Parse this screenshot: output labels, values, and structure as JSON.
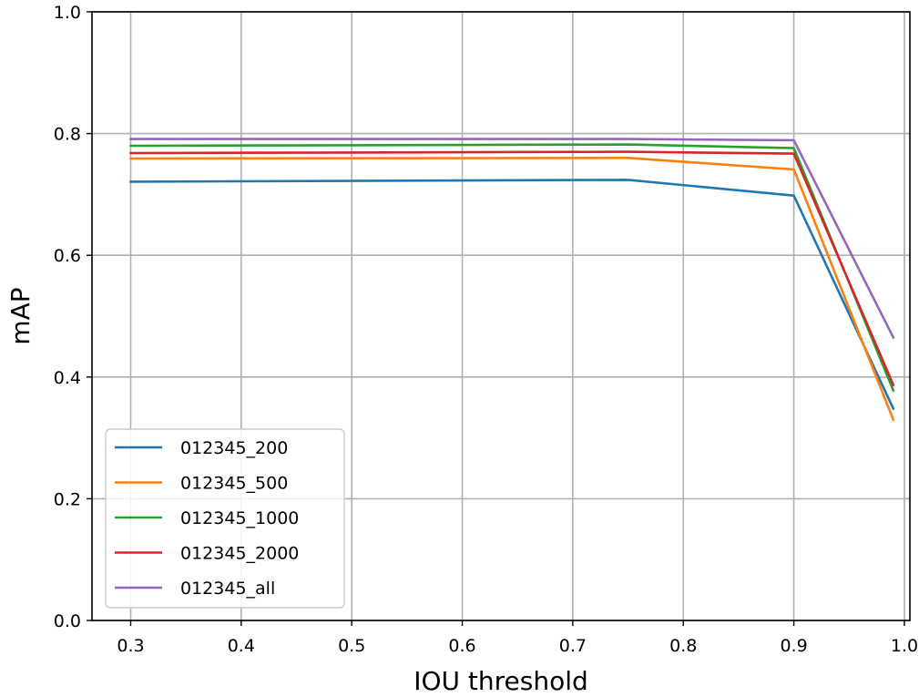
{
  "chart_data": {
    "type": "line",
    "xlabel": "IOU threshold",
    "ylabel": "mAP",
    "xlim": [
      0.265,
      1.005
    ],
    "ylim": [
      0.0,
      1.0
    ],
    "xticks": [
      "0.3",
      "0.4",
      "0.5",
      "0.6",
      "0.7",
      "0.8",
      "0.9",
      "1.0"
    ],
    "yticks": [
      "0.0",
      "0.2",
      "0.4",
      "0.6",
      "0.8",
      "1.0"
    ],
    "grid": true,
    "legend_position": "lower-left",
    "x": [
      0.3,
      0.75,
      0.9,
      0.99
    ],
    "series": [
      {
        "name": "012345_200",
        "color": "#1f77b4",
        "values": [
          0.721,
          0.724,
          0.698,
          0.348
        ]
      },
      {
        "name": "012345_500",
        "color": "#ff7f0e",
        "values": [
          0.759,
          0.76,
          0.741,
          0.33
        ]
      },
      {
        "name": "012345_1000",
        "color": "#2ca02c",
        "values": [
          0.78,
          0.782,
          0.776,
          0.378
        ]
      },
      {
        "name": "012345_2000",
        "color": "#d62728",
        "values": [
          0.768,
          0.77,
          0.767,
          0.387
        ]
      },
      {
        "name": "012345_all",
        "color": "#9467bd",
        "values": [
          0.791,
          0.791,
          0.789,
          0.465
        ]
      }
    ]
  }
}
